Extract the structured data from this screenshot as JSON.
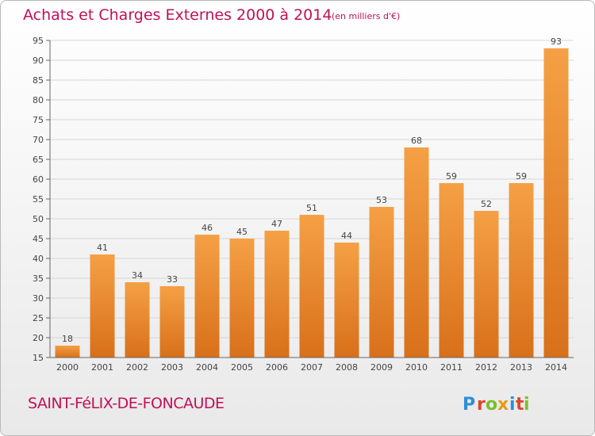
{
  "chart_data": {
    "type": "bar",
    "title": "Achats et Charges Externes 2000 à 2014",
    "unit": "(en milliers d'€)",
    "categories": [
      "2000",
      "2001",
      "2002",
      "2003",
      "2004",
      "2005",
      "2006",
      "2007",
      "2008",
      "2009",
      "2010",
      "2011",
      "2012",
      "2013",
      "2014"
    ],
    "values": [
      18,
      41,
      34,
      33,
      46,
      45,
      47,
      51,
      44,
      53,
      68,
      59,
      52,
      59,
      93
    ],
    "ylim": [
      15,
      95
    ],
    "yticks": [
      15,
      20,
      25,
      30,
      35,
      40,
      45,
      50,
      55,
      60,
      65,
      70,
      75,
      80,
      85,
      90,
      95
    ],
    "grid": true,
    "bar_color": "#f08c28",
    "bar_color_dark": "#d8701a"
  },
  "place_name": "SAINT-FéLIX-DE-FONCAUDE",
  "logo": {
    "letters": [
      "P",
      "r",
      "o",
      "x",
      "i",
      "t",
      "i"
    ],
    "colors": [
      "#2c8fd6",
      "#e0442b",
      "#7bbf2a",
      "#e89a1a",
      "#2c8fd6",
      "#e0442b",
      "#7bbf2a"
    ]
  }
}
